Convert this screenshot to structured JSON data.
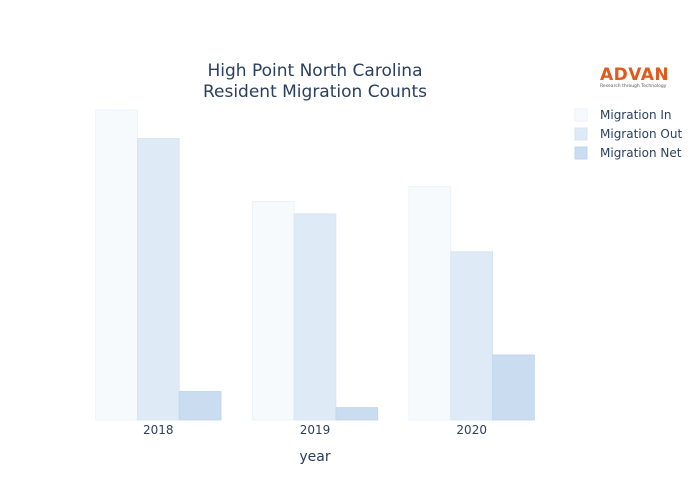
{
  "chart_data": {
    "type": "bar",
    "title_lines": [
      "High Point North Carolina",
      "Resident Migration Counts"
    ],
    "categories": [
      "2018",
      "2019",
      "2020"
    ],
    "xlabel": "year",
    "ylabel": "",
    "ylim": [
      0,
      1000
    ],
    "grid": false,
    "legend_position": "top-right",
    "series": [
      {
        "name": "Migration In",
        "values": [
          1000,
          705,
          753
        ],
        "color": "#f6fafd",
        "stroke": "#e9f1fa"
      },
      {
        "name": "Migration Out",
        "values": [
          908,
          665,
          543
        ],
        "color": "#deeaf6",
        "stroke": "#d4e3f3"
      },
      {
        "name": "Migration Net",
        "values": [
          92,
          40,
          210
        ],
        "color": "#c9dcf0",
        "stroke": "#bfd4ec"
      }
    ]
  },
  "logo": {
    "text": "ADVAN",
    "tagline": "Research through Technology",
    "color": "#e05a1e"
  }
}
